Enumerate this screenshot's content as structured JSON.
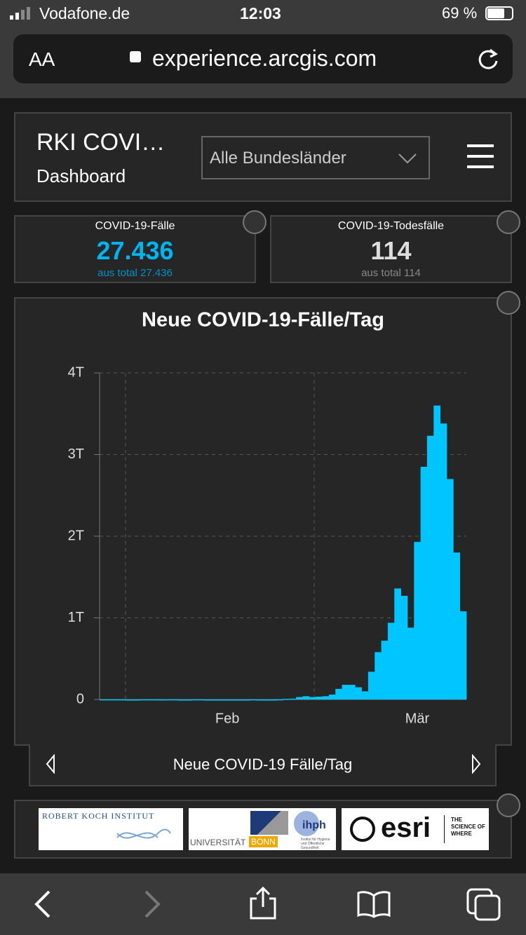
{
  "status_bar": {
    "carrier": "Vodafone.de",
    "time": "12:03",
    "battery": "69 %"
  },
  "browser": {
    "text_size": "AA",
    "url": "experience.arcgis.com"
  },
  "header": {
    "title": "RKI COVI…",
    "subtitle": "Dashboard",
    "dropdown": "Alle Bundesländer"
  },
  "indicators": [
    {
      "label": "COVID-19-Fälle",
      "value": "27.436",
      "sub": "aus total 27.436"
    },
    {
      "label": "COVID-19-Todesfälle",
      "value": "114",
      "sub": "aus total 114"
    }
  ],
  "chart": {
    "type": "bar",
    "title": "Neue COVID-19-Fälle/Tag",
    "color": "#00c5ff",
    "grid": true,
    "categories": [
      null,
      null,
      null,
      null,
      null,
      null,
      null,
      null,
      null,
      null,
      null,
      null,
      null,
      null,
      null,
      null,
      null,
      null,
      null,
      "Feb",
      null,
      null,
      null,
      null,
      null,
      null,
      null,
      null,
      null,
      null,
      null,
      null,
      null,
      null,
      null,
      null,
      null,
      null,
      null,
      null,
      null,
      null,
      null,
      null,
      null,
      null,
      null,
      null,
      "Mär",
      null,
      null,
      null,
      null,
      null,
      null,
      null
    ],
    "values": [
      2,
      2,
      2,
      2,
      0,
      0,
      2,
      2,
      2,
      1,
      2,
      2,
      0,
      0,
      2,
      2,
      0,
      0,
      0,
      0,
      0,
      0,
      0,
      2,
      0,
      0,
      0,
      2,
      8,
      10,
      30,
      40,
      30,
      35,
      40,
      60,
      130,
      180,
      180,
      150,
      100,
      340,
      580,
      720,
      940,
      1360,
      1270,
      880,
      1930,
      2850,
      3230,
      3600,
      3380,
      2700,
      1800,
      1080
    ],
    "ylim": [
      0,
      4000
    ],
    "yticks": [
      0,
      {
        "value": 1000,
        "label": "1T"
      },
      {
        "value": 2000,
        "label": "2T"
      },
      {
        "value": 3000,
        "label": "3T"
      },
      {
        "value": 4000,
        "label": "4T"
      }
    ]
  },
  "chart_nav": {
    "label": "Neue COVID-19 Fälle/Tag"
  },
  "logos": {
    "rki": "ROBERT KOCH INSTITUT",
    "uni": "UNIVERSITÄT",
    "bonn": "BONN",
    "ihph": "ihph",
    "ihph_sub": "Institut für Hygiene und Öffentliche Gesundheit",
    "esri": "esri",
    "esri_tag": "THE SCIENCE OF WHERE"
  }
}
